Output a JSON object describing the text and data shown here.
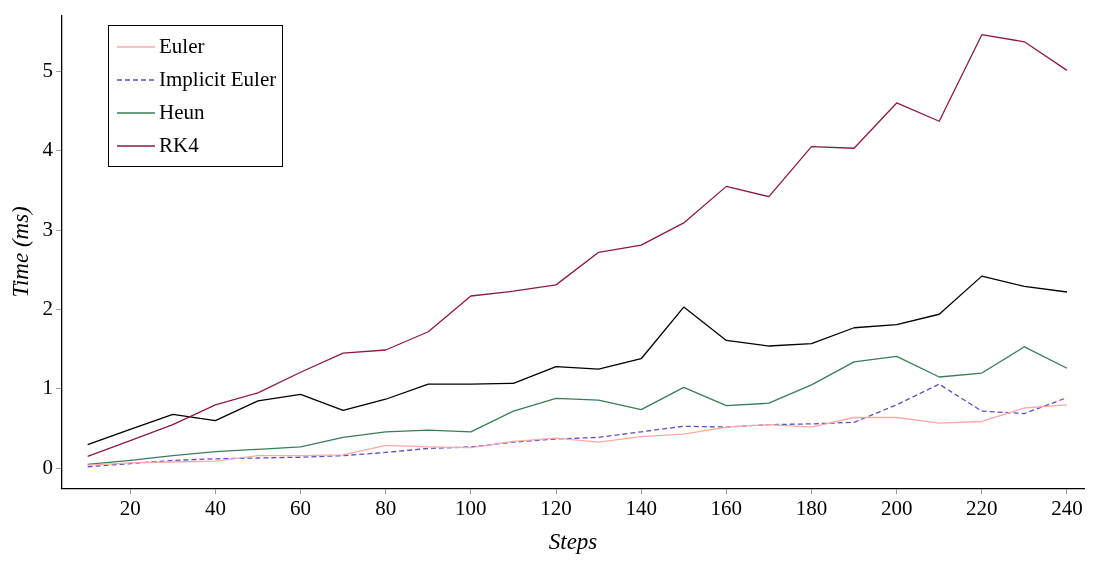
{
  "chart_data": {
    "type": "line",
    "xlabel": "Steps",
    "ylabel": "Time (ms)",
    "x": [
      10,
      20,
      30,
      40,
      50,
      60,
      70,
      80,
      90,
      100,
      110,
      120,
      130,
      140,
      150,
      160,
      170,
      180,
      190,
      200,
      210,
      220,
      230,
      240
    ],
    "xlim": [
      4,
      244
    ],
    "xticks": [
      20,
      40,
      60,
      80,
      100,
      120,
      140,
      160,
      180,
      200,
      220,
      240
    ],
    "ylim": [
      -0.25,
      5.7
    ],
    "yticks": [
      0,
      1,
      2,
      3,
      4,
      5
    ],
    "grid": false,
    "legend": "top left",
    "marker": "none",
    "series": [
      {
        "name": "Euler",
        "color": "#ffa8a8",
        "line_style": "solid",
        "values": [
          0.04,
          0.07,
          0.08,
          0.09,
          0.16,
          0.16,
          0.17,
          0.29,
          0.27,
          0.26,
          0.34,
          0.38,
          0.33,
          0.4,
          0.43,
          0.52,
          0.55,
          0.52,
          0.64,
          0.64,
          0.57,
          0.59,
          0.76,
          0.8
        ]
      },
      {
        "name": "Implicit Euler",
        "color": "#5a50c0",
        "line_style": "dashed",
        "values": [
          0.02,
          0.06,
          0.1,
          0.12,
          0.13,
          0.14,
          0.16,
          0.2,
          0.25,
          0.27,
          0.33,
          0.37,
          0.39,
          0.46,
          0.53,
          0.52,
          0.55,
          0.56,
          0.58,
          0.8,
          1.06,
          0.72,
          0.69,
          0.89
        ]
      },
      {
        "name": "Heun",
        "color": "#3a7d5a",
        "line_style": "solid",
        "values": [
          0.05,
          0.1,
          0.16,
          0.21,
          0.24,
          0.27,
          0.39,
          0.46,
          0.48,
          0.46,
          0.72,
          0.88,
          0.86,
          0.74,
          1.02,
          0.79,
          0.82,
          1.05,
          1.34,
          1.41,
          1.15,
          1.2,
          1.53,
          1.26
        ]
      },
      {
        "name": "RK4",
        "color": "#8b1a46",
        "line_style": "solid",
        "values": [
          0.15,
          0.35,
          0.55,
          0.8,
          0.95,
          1.21,
          1.45,
          1.49,
          1.72,
          2.17,
          2.23,
          2.31,
          2.72,
          2.81,
          3.09,
          3.55,
          3.42,
          4.05,
          4.03,
          4.6,
          4.37,
          5.46,
          5.37,
          5.01
        ]
      },
      {
        "color": "#000000",
        "line_style": "solid",
        "values": [
          0.3,
          0.49,
          0.68,
          0.6,
          0.85,
          0.93,
          0.73,
          0.87,
          1.06,
          1.06,
          1.07,
          1.28,
          1.25,
          1.38,
          2.03,
          1.61,
          1.54,
          1.57,
          1.77,
          1.81,
          1.94,
          2.42,
          2.29,
          2.22
        ]
      }
    ]
  }
}
